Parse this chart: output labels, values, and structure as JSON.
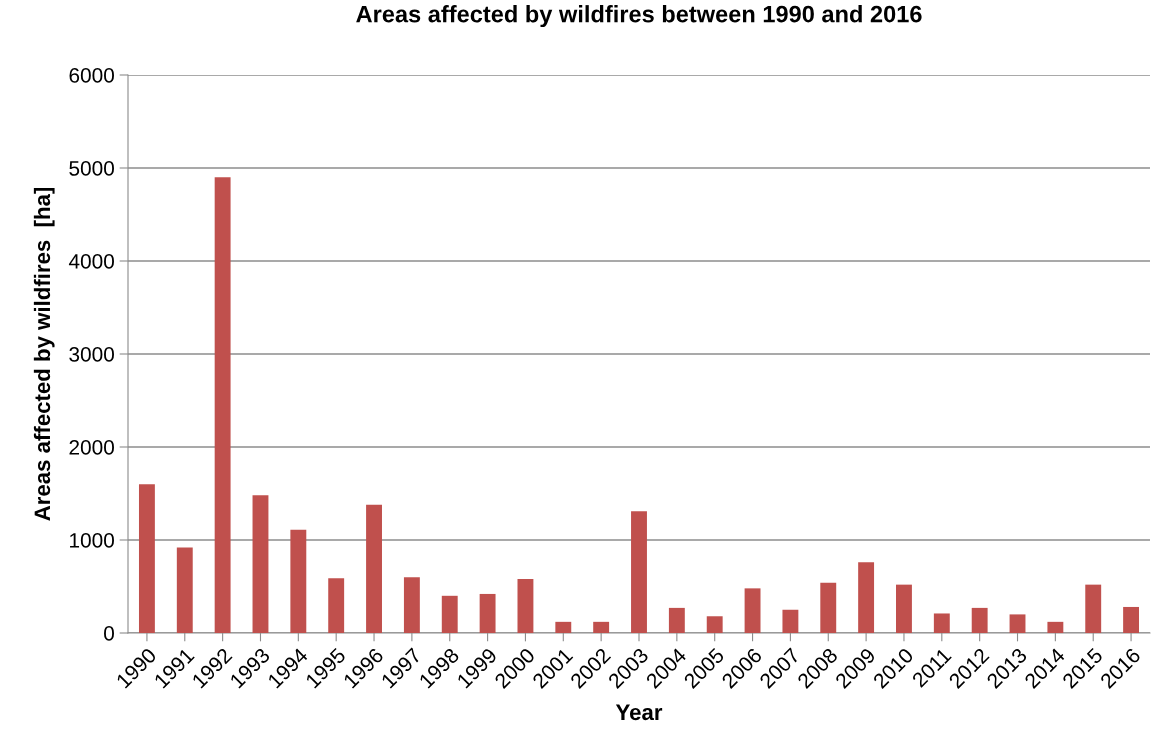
{
  "chart_data": {
    "type": "bar",
    "title": "Areas affected by wildfires between 1990 and 2016",
    "xlabel": "Year",
    "ylabel": "Areas affected by wildfires  [ha]",
    "categories": [
      "1990",
      "1991",
      "1992",
      "1993",
      "1994",
      "1995",
      "1996",
      "1997",
      "1998",
      "1999",
      "2000",
      "2001",
      "2002",
      "2003",
      "2004",
      "2005",
      "2006",
      "2007",
      "2008",
      "2009",
      "2010",
      "2011",
      "2012",
      "2013",
      "2014",
      "2015",
      "2016"
    ],
    "values": [
      1600,
      920,
      4900,
      1480,
      1110,
      590,
      1380,
      600,
      400,
      420,
      580,
      120,
      120,
      1310,
      270,
      180,
      480,
      250,
      540,
      760,
      520,
      210,
      270,
      200,
      120,
      520,
      280
    ],
    "color": "#c0504d",
    "ylim": [
      0,
      6000
    ],
    "yticks": [
      0,
      1000,
      2000,
      3000,
      4000,
      5000,
      6000
    ],
    "grid": "y",
    "legend": false
  }
}
